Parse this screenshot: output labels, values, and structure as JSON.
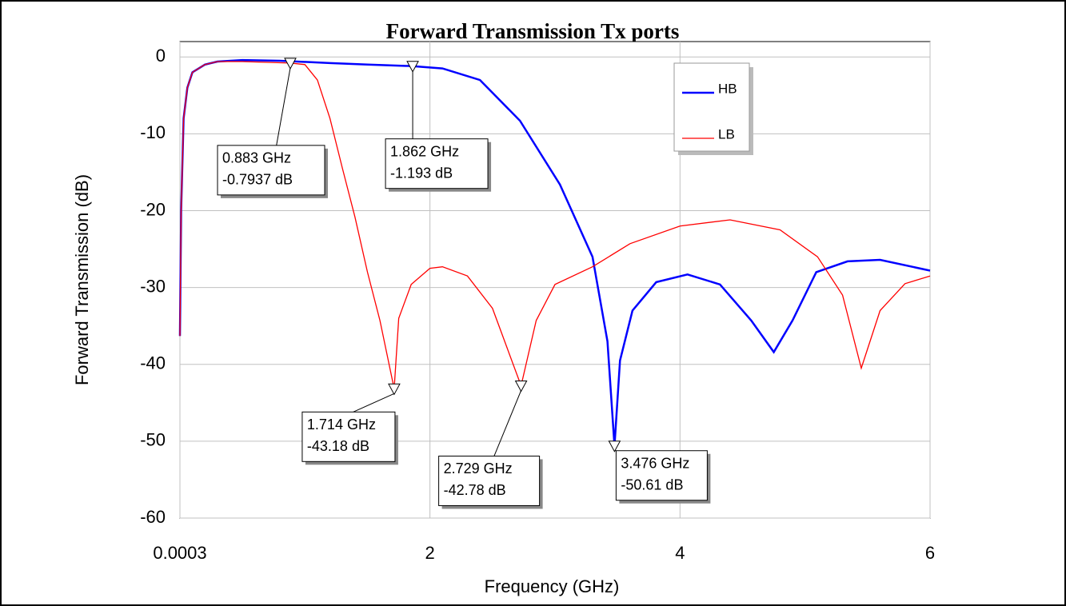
{
  "chart_data": {
    "type": "line",
    "title": "Forward Transmission Tx  ports",
    "xlabel": "Frequency (GHz)",
    "ylabel": "Forward Transmission (dB)",
    "xlim": [
      0.0003,
      6
    ],
    "xticks": [
      0.0003,
      2,
      4,
      6
    ],
    "ylim": [
      -60,
      2
    ],
    "yticks": [
      0,
      -10,
      -20,
      -30,
      -40,
      -50,
      -60
    ],
    "grid": true,
    "legend": "upper right",
    "series": [
      {
        "name": "HB",
        "color": "#0000ff",
        "x": [
          0.0003,
          0.01,
          0.03,
          0.06,
          0.1,
          0.2,
          0.3,
          0.5,
          0.8,
          1.2,
          1.5,
          1.862,
          2.1,
          2.4,
          2.72,
          3.04,
          3.3,
          3.42,
          3.476,
          3.52,
          3.62,
          3.81,
          4.06,
          4.32,
          4.57,
          4.75,
          4.9,
          5.09,
          5.34,
          5.6,
          6
        ],
        "values": [
          -36.3,
          -20,
          -8,
          -4,
          -2,
          -1,
          -0.6,
          -0.4,
          -0.5,
          -0.8,
          -1,
          -1.193,
          -1.5,
          -3,
          -8.3,
          -16.6,
          -26,
          -37,
          -50.61,
          -39.5,
          -33,
          -29.3,
          -28.3,
          -29.6,
          -34.3,
          -38.4,
          -34.3,
          -28,
          -26.6,
          -26.4,
          -27.8
        ]
      },
      {
        "name": "LB",
        "color": "#ff0000",
        "x": [
          0.0003,
          0.01,
          0.03,
          0.06,
          0.1,
          0.2,
          0.3,
          0.5,
          0.883,
          1.0,
          1.1,
          1.2,
          1.3,
          1.4,
          1.5,
          1.6,
          1.714,
          1.75,
          1.85,
          2.0,
          2.1,
          2.3,
          2.5,
          2.729,
          2.85,
          3.0,
          3.3,
          3.6,
          4.0,
          4.4,
          4.8,
          5.1,
          5.3,
          5.45,
          5.6,
          5.8,
          6
        ],
        "values": [
          -36.3,
          -20,
          -8,
          -4,
          -2,
          -1,
          -0.6,
          -0.6,
          -0.7937,
          -1,
          -3,
          -8,
          -14.5,
          -20.8,
          -28,
          -34.3,
          -43.18,
          -34,
          -29.6,
          -27.5,
          -27.3,
          -28.5,
          -32.7,
          -42.78,
          -34.3,
          -29.6,
          -27.3,
          -24.3,
          -22,
          -21.2,
          -22.5,
          -26,
          -31,
          -40.5,
          -33,
          -29.5,
          -28.5
        ]
      }
    ],
    "markers": [
      {
        "x": 0.883,
        "y": -0.7937,
        "x_label": "0.883 GHz",
        "y_label": "-0.7937 dB"
      },
      {
        "x": 1.862,
        "y": -1.193,
        "x_label": "1.862 GHz",
        "y_label": "-1.193 dB"
      },
      {
        "x": 1.714,
        "y": -43.18,
        "x_label": "1.714 GHz",
        "y_label": "-43.18 dB"
      },
      {
        "x": 2.729,
        "y": -42.78,
        "x_label": "2.729 GHz",
        "y_label": "-42.78 dB"
      },
      {
        "x": 3.476,
        "y": -50.61,
        "x_label": "3.476 GHz",
        "y_label": "-50.61 dB"
      }
    ]
  }
}
